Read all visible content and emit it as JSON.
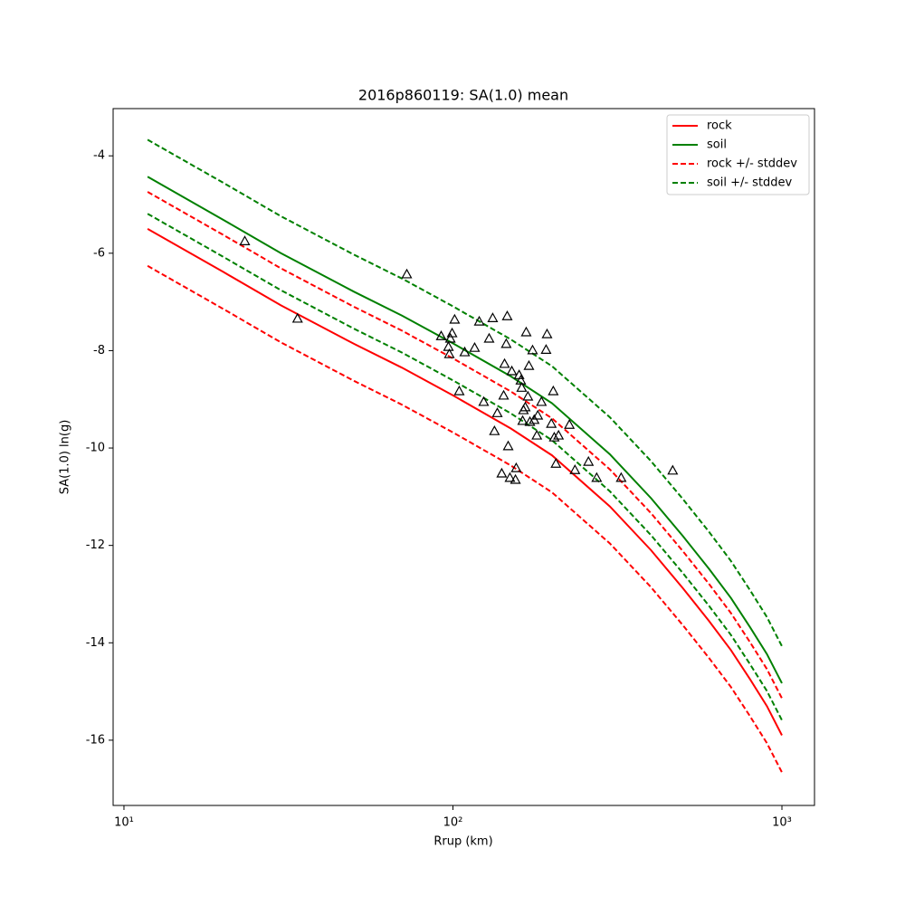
{
  "chart_data": {
    "type": "line",
    "title": "2016p860119: SA(1.0) mean",
    "x_label": "Rrup (km)",
    "y_label": "SA(1.0) ln(g)",
    "x_scale": "log",
    "xlim": [
      9.27,
      1256
    ],
    "ylim": [
      -17.34,
      -3.03
    ],
    "xticks": [
      {
        "value": 10,
        "label": "10¹"
      },
      {
        "value": 100,
        "label": "10²"
      },
      {
        "value": 1000,
        "label": "10³"
      }
    ],
    "yticks": [
      -16,
      -14,
      -12,
      -10,
      -8,
      -6,
      -4
    ],
    "legend": "upper right",
    "x": [
      11.8,
      20,
      30,
      50,
      70,
      100,
      150,
      200,
      300,
      400,
      500,
      600,
      700,
      800,
      900,
      1000
    ],
    "series": [
      {
        "name": "rock",
        "color": "#ff0000",
        "values": [
          -5.5,
          -6.38,
          -7.07,
          -7.86,
          -8.35,
          -8.92,
          -9.6,
          -10.15,
          -11.2,
          -12.1,
          -12.88,
          -13.55,
          -14.15,
          -14.75,
          -15.3,
          -15.9
        ]
      },
      {
        "name": "soil",
        "color": "#008000",
        "values": [
          -4.43,
          -5.31,
          -6.0,
          -6.79,
          -7.28,
          -7.85,
          -8.53,
          -9.08,
          -10.13,
          -11.03,
          -11.81,
          -12.48,
          -13.08,
          -13.68,
          -14.23,
          -14.83
        ]
      },
      {
        "name": "rock +/- stddev",
        "color": "#ff0000",
        "dashed": true,
        "upper": [
          -4.74,
          -5.62,
          -6.31,
          -7.1,
          -7.59,
          -8.16,
          -8.84,
          -9.39,
          -10.44,
          -11.34,
          -12.12,
          -12.79,
          -13.39,
          -13.99,
          -14.54,
          -15.14
        ],
        "lower": [
          -6.26,
          -7.14,
          -7.83,
          -8.62,
          -9.11,
          -9.68,
          -10.36,
          -10.91,
          -11.96,
          -12.86,
          -13.64,
          -14.31,
          -14.91,
          -15.51,
          -16.06,
          -16.66
        ]
      },
      {
        "name": "soil +/- stddev",
        "color": "#008000",
        "dashed": true,
        "upper": [
          -3.67,
          -4.55,
          -5.24,
          -6.03,
          -6.52,
          -7.09,
          -7.77,
          -8.32,
          -9.37,
          -10.27,
          -11.05,
          -11.72,
          -12.32,
          -12.92,
          -13.47,
          -14.07
        ],
        "lower": [
          -5.19,
          -6.07,
          -6.76,
          -7.55,
          -8.04,
          -8.61,
          -9.29,
          -9.84,
          -10.89,
          -11.79,
          -12.57,
          -13.24,
          -13.84,
          -14.44,
          -14.99,
          -15.59
        ]
      }
    ],
    "points": {
      "marker": "triangle",
      "color": "#000000",
      "x": [
        23.3,
        72.4,
        33.7,
        92.1,
        96.9,
        99.4,
        101.2,
        97.5,
        98.2,
        104.5,
        108.6,
        116.4,
        120.2,
        124.0,
        128.8,
        132.1,
        133.7,
        136.4,
        140.7,
        142.6,
        143.5,
        145.2,
        146.2,
        147.2,
        149.0,
        151.0,
        154.9,
        155.7,
        158.9,
        160.8,
        161.8,
        162.9,
        163.8,
        165.9,
        167.0,
        169.0,
        170.2,
        171.4,
        174.6,
        176.6,
        179.9,
        181.1,
        185.8,
        191.9,
        193.2,
        199.1,
        201.8,
        203.2,
        205.6,
        209.4,
        225.9,
        234.9,
        258.2,
        273.5,
        324.6,
        465.6
      ],
      "y": [
        -5.75,
        -6.43,
        -7.34,
        -7.7,
        -7.92,
        -7.64,
        -7.36,
        -8.07,
        -7.75,
        -8.83,
        -8.03,
        -7.94,
        -7.4,
        -9.05,
        -7.75,
        -7.33,
        -9.65,
        -9.28,
        -10.52,
        -8.92,
        -8.27,
        -7.86,
        -7.29,
        -9.96,
        -10.61,
        -8.42,
        -10.65,
        -10.41,
        -8.5,
        -8.61,
        -8.76,
        -9.44,
        -9.22,
        -9.16,
        -7.62,
        -8.94,
        -8.31,
        -9.46,
        -7.99,
        -9.42,
        -9.74,
        -9.33,
        -9.05,
        -7.98,
        -7.66,
        -9.5,
        -8.83,
        -9.78,
        -10.32,
        -9.74,
        -9.52,
        -10.45,
        -10.28,
        -10.61,
        -10.61,
        -10.46
      ]
    }
  }
}
